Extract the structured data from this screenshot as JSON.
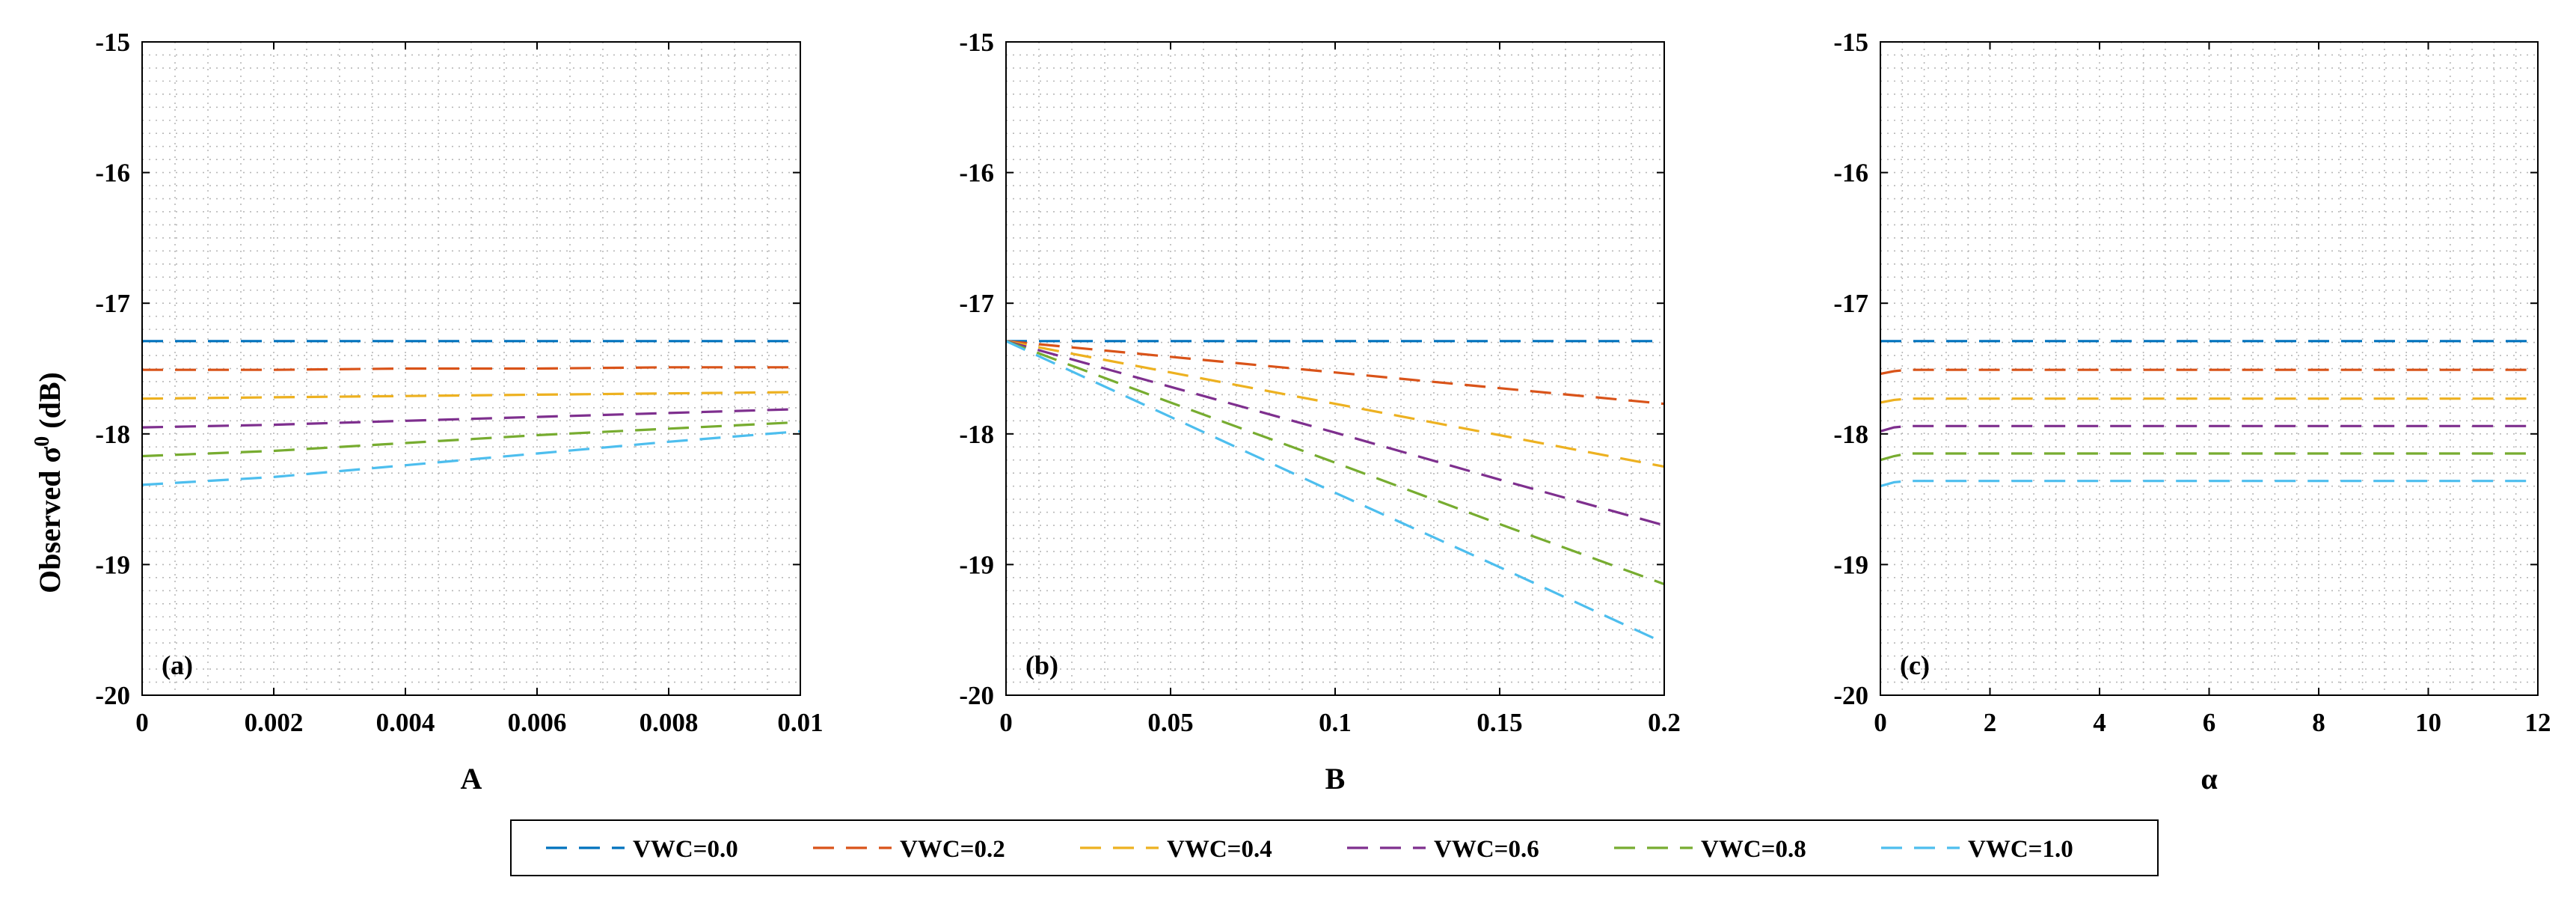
{
  "y_label": "Observed σ",
  "y_label_sup": "0",
  "y_label_unit": " (dB)",
  "colors": {
    "VWC=0.0": "#0072BD",
    "VWC=0.2": "#D95319",
    "VWC=0.4": "#EDB120",
    "VWC=0.6": "#7E2F8E",
    "VWC=0.8": "#77AC30",
    "VWC=1.0": "#4DBEEE"
  },
  "legend": {
    "entries": [
      "VWC=0.0",
      "VWC=0.2",
      "VWC=0.4",
      "VWC=0.6",
      "VWC=0.8",
      "VWC=1.0"
    ]
  },
  "chart_data": [
    {
      "type": "line",
      "panel_label": "(a)",
      "xlabel": "A",
      "ylabel": "Observed σ0 (dB)",
      "xlim": [
        0,
        0.01
      ],
      "ylim": [
        -20,
        -15
      ],
      "xticks": [
        0,
        0.002,
        0.004,
        0.006,
        0.008,
        0.01
      ],
      "xtick_labels": [
        "0",
        "0.002",
        "0.004",
        "0.006",
        "0.008",
        "0.01"
      ],
      "yticks": [
        -20,
        -19,
        -18,
        -17,
        -16,
        -15
      ],
      "ytick_labels": [
        "-20",
        "-19",
        "-18",
        "-17",
        "-16",
        "-15"
      ],
      "grid": true,
      "series": [
        {
          "name": "VWC=0.0",
          "x": [
            0,
            0.01
          ],
          "y": [
            -17.29,
            -17.29
          ]
        },
        {
          "name": "VWC=0.2",
          "x": [
            0,
            0.002,
            0.004,
            0.006,
            0.008,
            0.01
          ],
          "y": [
            -17.51,
            -17.51,
            -17.5,
            -17.5,
            -17.49,
            -17.49
          ]
        },
        {
          "name": "VWC=0.4",
          "x": [
            0,
            0.002,
            0.004,
            0.006,
            0.008,
            0.01
          ],
          "y": [
            -17.73,
            -17.72,
            -17.71,
            -17.7,
            -17.69,
            -17.68
          ]
        },
        {
          "name": "VWC=0.6",
          "x": [
            0,
            0.002,
            0.004,
            0.006,
            0.008,
            0.01
          ],
          "y": [
            -17.95,
            -17.93,
            -17.9,
            -17.87,
            -17.84,
            -17.81
          ]
        },
        {
          "name": "VWC=0.8",
          "x": [
            0,
            0.002,
            0.004,
            0.006,
            0.008,
            0.01
          ],
          "y": [
            -18.17,
            -18.13,
            -18.07,
            -18.01,
            -17.96,
            -17.91
          ]
        },
        {
          "name": "VWC=1.0",
          "x": [
            0,
            0.002,
            0.004,
            0.006,
            0.008,
            0.01
          ],
          "y": [
            -18.39,
            -18.33,
            -18.24,
            -18.15,
            -18.06,
            -17.98
          ]
        }
      ]
    },
    {
      "type": "line",
      "panel_label": "(b)",
      "xlabel": "B",
      "ylabel": "",
      "xlim": [
        0,
        0.2
      ],
      "ylim": [
        -20,
        -15
      ],
      "xticks": [
        0,
        0.05,
        0.1,
        0.15,
        0.2
      ],
      "xtick_labels": [
        "0",
        "0.05",
        "0.1",
        "0.15",
        "0.2"
      ],
      "yticks": [
        -20,
        -19,
        -18,
        -17,
        -16,
        -15
      ],
      "ytick_labels": [
        "-20",
        "-19",
        "-18",
        "-17",
        "-16",
        "-15"
      ],
      "grid": true,
      "series": [
        {
          "name": "VWC=0.0",
          "x": [
            0,
            0.2
          ],
          "y": [
            -17.29,
            -17.29
          ]
        },
        {
          "name": "VWC=0.2",
          "x": [
            0,
            0.05,
            0.1,
            0.15,
            0.2
          ],
          "y": [
            -17.29,
            -17.41,
            -17.53,
            -17.65,
            -17.77
          ]
        },
        {
          "name": "VWC=0.4",
          "x": [
            0,
            0.05,
            0.1,
            0.15,
            0.2
          ],
          "y": [
            -17.29,
            -17.53,
            -17.77,
            -18.01,
            -18.25
          ]
        },
        {
          "name": "VWC=0.6",
          "x": [
            0,
            0.05,
            0.1,
            0.15,
            0.2
          ],
          "y": [
            -17.29,
            -17.64,
            -17.99,
            -18.35,
            -18.7
          ]
        },
        {
          "name": "VWC=0.8",
          "x": [
            0,
            0.05,
            0.1,
            0.15,
            0.2
          ],
          "y": [
            -17.29,
            -17.76,
            -18.22,
            -18.69,
            -19.15
          ]
        },
        {
          "name": "VWC=1.0",
          "x": [
            0,
            0.05,
            0.1,
            0.15,
            0.2
          ],
          "y": [
            -17.29,
            -17.87,
            -18.45,
            -19.02,
            -19.6
          ]
        }
      ]
    },
    {
      "type": "line",
      "panel_label": "(c)",
      "xlabel": "α",
      "ylabel": "",
      "xlim": [
        0,
        12
      ],
      "ylim": [
        -20,
        -15
      ],
      "xticks": [
        0,
        2,
        4,
        6,
        8,
        10,
        12
      ],
      "xtick_labels": [
        "0",
        "2",
        "4",
        "6",
        "8",
        "10",
        "12"
      ],
      "yticks": [
        -20,
        -19,
        -18,
        -17,
        -16,
        -15
      ],
      "ytick_labels": [
        "-20",
        "-19",
        "-18",
        "-17",
        "-16",
        "-15"
      ],
      "grid": true,
      "series": [
        {
          "name": "VWC=0.0",
          "x": [
            0,
            12
          ],
          "y": [
            -17.29,
            -17.29
          ]
        },
        {
          "name": "VWC=0.2",
          "x": [
            0,
            0.25,
            0.5,
            1,
            12
          ],
          "y": [
            -17.54,
            -17.52,
            -17.51,
            -17.51,
            -17.51
          ]
        },
        {
          "name": "VWC=0.4",
          "x": [
            0,
            0.25,
            0.5,
            1,
            12
          ],
          "y": [
            -17.76,
            -17.74,
            -17.73,
            -17.73,
            -17.73
          ]
        },
        {
          "name": "VWC=0.6",
          "x": [
            0,
            0.25,
            0.5,
            1,
            12
          ],
          "y": [
            -17.98,
            -17.95,
            -17.94,
            -17.94,
            -17.94
          ]
        },
        {
          "name": "VWC=0.8",
          "x": [
            0,
            0.25,
            0.5,
            1,
            12
          ],
          "y": [
            -18.2,
            -18.17,
            -18.15,
            -18.15,
            -18.15
          ]
        },
        {
          "name": "VWC=1.0",
          "x": [
            0,
            0.25,
            0.5,
            1,
            12
          ],
          "y": [
            -18.4,
            -18.37,
            -18.36,
            -18.36,
            -18.36
          ]
        }
      ]
    }
  ]
}
